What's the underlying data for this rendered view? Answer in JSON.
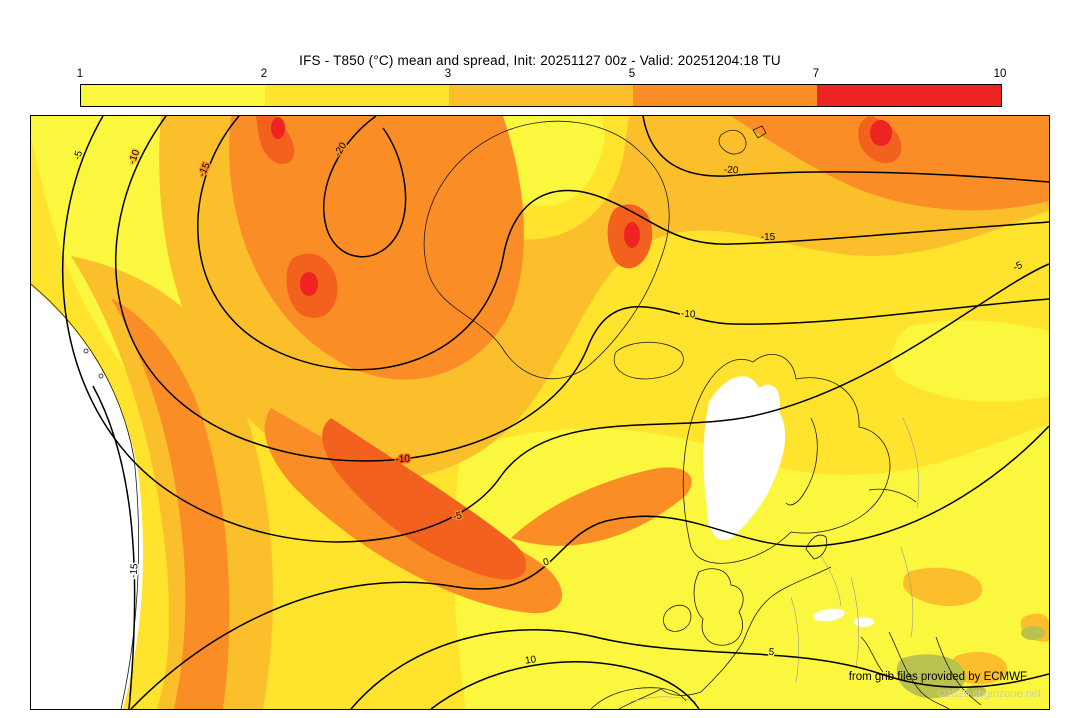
{
  "title": "IFS - T850 (°C) mean and spread, Init: 20251127 00z - Valid: 20251204:18 TU",
  "colorbar": {
    "tick_labels": [
      "1",
      "2",
      "3",
      "5",
      "7",
      "10"
    ],
    "segment_colors": [
      "#FBF73E",
      "#FFE32C",
      "#FCBF2C",
      "#FB8D26",
      "#EE2423"
    ]
  },
  "map": {
    "palette": {
      "below_1": "#FFFFFF",
      "spread_1_2": "#FBF73E",
      "spread_2_3": "#FFE32C",
      "spread_3_5": "#FCBF2C",
      "spread_5_7": "#FB8D26",
      "spread_high": "#F2611E",
      "spread_7_10": "#EE2423",
      "terrain_green": "#B9C24D"
    },
    "contour_labels": [
      "-20",
      "-20",
      "-15",
      "-15",
      "-15",
      "-10",
      "-10",
      "-10",
      "-5",
      "-5",
      "-5",
      "0",
      "5",
      "10"
    ]
  },
  "credits": {
    "line1": "from grib files provided by ECMWF",
    "line2": "©2025 sbgirizone.net"
  },
  "chart_data": {
    "type": "heatmap",
    "subtype": "contour-map",
    "title": "IFS - T850 (°C) mean and spread",
    "model": "IFS (ECMWF)",
    "variable": "Temperature at 850 hPa (°C)",
    "init": "20251127 00z",
    "valid": "20251204:18 TU",
    "region": "North Atlantic and Europe",
    "shading": {
      "quantity": "ensemble spread (°C)",
      "level_boundaries": [
        1,
        2,
        3,
        5,
        7,
        10
      ],
      "colors": [
        "#FBF73E",
        "#FFE32C",
        "#FCBF2C",
        "#FB8D26",
        "#EE2423"
      ],
      "below_min_color": "#FFFFFF",
      "legend_position": "top"
    },
    "contours": {
      "quantity": "ensemble mean temperature (°C)",
      "labeled_values": [
        -20,
        -15,
        -10,
        -5,
        0,
        5,
        10
      ],
      "line_color": "#000000"
    },
    "source": "from grib files provided by ECMWF"
  }
}
